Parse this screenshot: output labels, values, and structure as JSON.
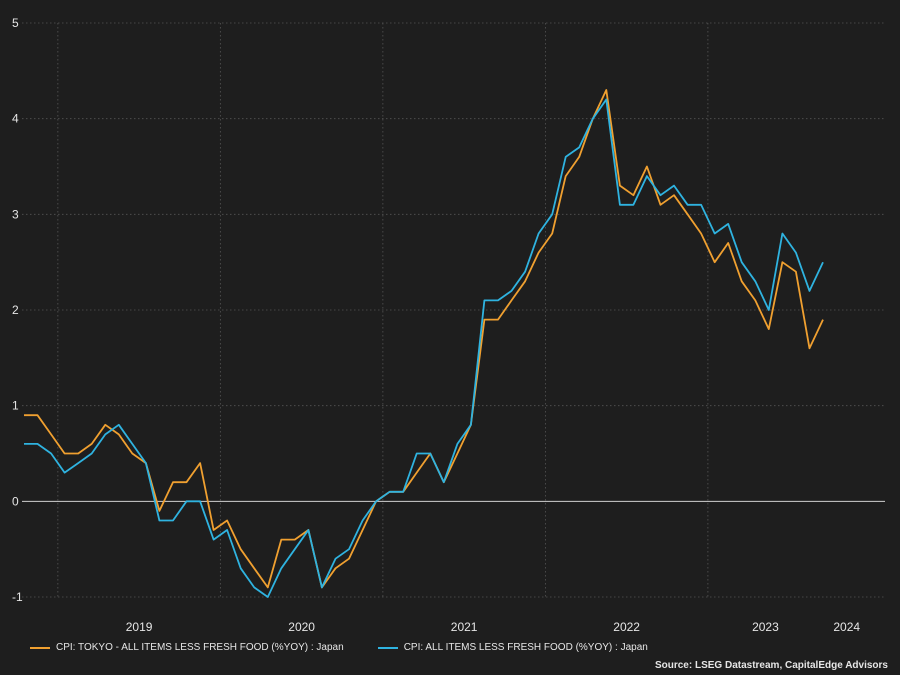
{
  "chart_data": {
    "type": "line",
    "ylim": [
      -1,
      5
    ],
    "yticks": [
      -1,
      0,
      1,
      2,
      3,
      4,
      5
    ],
    "year_labels": [
      "2019",
      "2020",
      "2021",
      "2022",
      "2023",
      "2024"
    ],
    "x_start": "2018-10",
    "grid": true,
    "legend_position": "bottom-left",
    "series": [
      {
        "name": "CPI: TOKYO - ALL ITEMS LESS FRESH FOOD (%YOY) : Japan",
        "color": "#f0a030",
        "values": [
          0.9,
          0.9,
          0.7,
          0.5,
          0.5,
          0.6,
          0.8,
          0.7,
          0.5,
          0.4,
          -0.1,
          0.2,
          0.2,
          0.4,
          -0.3,
          -0.2,
          -0.5,
          -0.7,
          -0.9,
          -0.4,
          -0.4,
          -0.3,
          -0.9,
          -0.7,
          -0.6,
          -0.3,
          0.0,
          0.1,
          0.1,
          0.3,
          0.5,
          0.2,
          0.5,
          0.8,
          1.9,
          1.9,
          2.1,
          2.3,
          2.6,
          2.8,
          3.4,
          3.6,
          4.0,
          4.3,
          3.3,
          3.2,
          3.5,
          3.1,
          3.2,
          3.0,
          2.8,
          2.5,
          2.7,
          2.3,
          2.1,
          1.8,
          2.5,
          2.4,
          1.6,
          1.9
        ]
      },
      {
        "name": "CPI: ALL ITEMS LESS FRESH FOOD (%YOY) : Japan",
        "color": "#2fb3e0",
        "values": [
          0.6,
          0.6,
          0.5,
          0.3,
          0.4,
          0.5,
          0.7,
          0.8,
          0.6,
          0.4,
          -0.2,
          -0.2,
          0.0,
          0.0,
          -0.4,
          -0.3,
          -0.7,
          -0.9,
          -1.0,
          -0.7,
          -0.5,
          -0.3,
          -0.9,
          -0.6,
          -0.5,
          -0.2,
          0.0,
          0.1,
          0.1,
          0.5,
          0.5,
          0.2,
          0.6,
          0.8,
          2.1,
          2.1,
          2.2,
          2.4,
          2.8,
          3.0,
          3.6,
          3.7,
          4.0,
          4.2,
          3.1,
          3.1,
          3.4,
          3.2,
          3.3,
          3.1,
          3.1,
          2.8,
          2.9,
          2.5,
          2.3,
          2.0,
          2.8,
          2.6,
          2.2,
          2.5
        ]
      }
    ],
    "source": "Source: LSEG Datastream, CapitalEdge Advisors"
  }
}
